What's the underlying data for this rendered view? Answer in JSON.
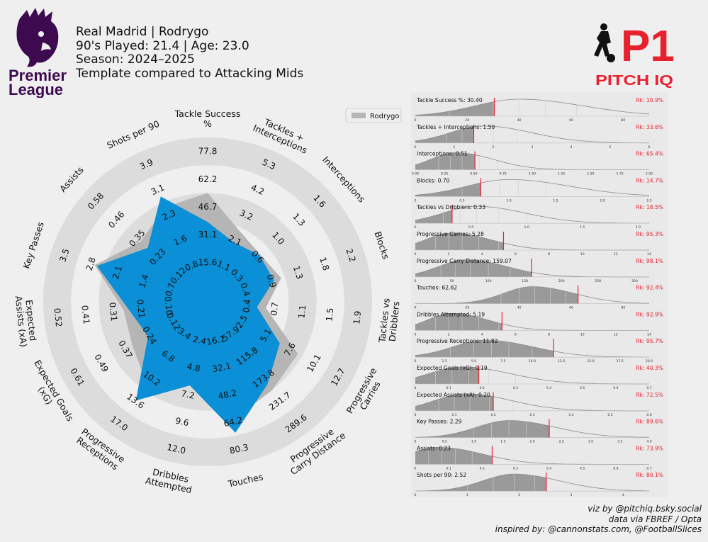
{
  "header": {
    "line1": "Real Madrid | Rodrygo",
    "line2": "90's Played: 21.4 | Age: 23.0",
    "line3": "Season: 2024–2025",
    "line4": "Template compared to Attacking Mids"
  },
  "logos": {
    "league_line1": "Premier",
    "league_line2": "League",
    "brand_p1": "P1",
    "brand_name": "PITCH IQ"
  },
  "colors": {
    "player_fill": "#0b8fd6",
    "comparison_fill": "#b5b5b5",
    "ring_band": "#dcdcdc",
    "percentile_text": "#e8212e",
    "marker": "#e8212e",
    "pl_purple": "#3d0a4f"
  },
  "legend": {
    "label": "Rodrygo"
  },
  "credits": {
    "line1": "viz by @pitchiq.bsky.social",
    "line2": "data via FBREF / Opta",
    "line3": "inspired by: @cannonstats.com, @FootballSlices"
  },
  "chart_data": [
    {
      "type": "radar",
      "name": "Rodrygo",
      "axes": [
        {
          "label": "Tackle Success\n%",
          "ticks": [
            "15.6",
            "31.1",
            "46.7",
            "62.2",
            "77.8"
          ],
          "max": 77.8,
          "player": 30.4,
          "comparison": 46.7
        },
        {
          "label": "Tackles +\nInterceptions",
          "ticks": [
            "1.1",
            "2.1",
            "3.2",
            "4.2",
            "5.3"
          ],
          "max": 5.3,
          "player": 1.5,
          "comparison": 2.0
        },
        {
          "label": "Interceptions",
          "ticks": [
            "0.3",
            "0.6",
            "1.0",
            "1.3",
            "1.6"
          ],
          "max": 1.6,
          "player": 0.51,
          "comparison": 0.52
        },
        {
          "label": "Blocks",
          "ticks": [
            "0.4",
            "0.9",
            "1.3",
            "1.8",
            "2.2"
          ],
          "max": 2.2,
          "player": 0.7,
          "comparison": 0.82
        },
        {
          "label": "Tackles vs\nDribblers",
          "ticks": [
            "0.4",
            "0.7",
            "1.1",
            "1.5",
            "1.9"
          ],
          "max": 1.9,
          "player": 0.33,
          "comparison": 0.45
        },
        {
          "label": "Progressive\nCarries",
          "ticks": [
            "2.5",
            "5.1",
            "7.6",
            "10.1",
            "12.7"
          ],
          "max": 12.7,
          "player": 5.28,
          "comparison": 7.2
        },
        {
          "label": "Progressive\nCarry Distance",
          "ticks": [
            "57.9",
            "115.8",
            "173.8",
            "231.7",
            "289.6"
          ],
          "max": 289.6,
          "player": 159.07,
          "comparison": 175.0
        },
        {
          "label": "Touches",
          "ticks": [
            "16.1",
            "32.1",
            "48.2",
            "64.2",
            "80.3"
          ],
          "max": 80.3,
          "player": 62.62,
          "comparison": 55.0
        },
        {
          "label": "Dribbles\nAttempted",
          "ticks": [
            "2.4",
            "4.8",
            "7.2",
            "9.6",
            "12.0"
          ],
          "max": 12.0,
          "player": 5.19,
          "comparison": 4.8
        },
        {
          "label": "Progressive\nReceptions",
          "ticks": [
            "3.4",
            "6.8",
            "10.2",
            "13.6",
            "17.0"
          ],
          "max": 17.0,
          "player": 11.82,
          "comparison": 9.5
        },
        {
          "label": "Expected Goals\n(xG)",
          "ticks": [
            "0.12",
            "0.24",
            "0.37",
            "0.49",
            "0.61"
          ],
          "max": 0.61,
          "player": 0.19,
          "comparison": 0.27
        },
        {
          "label": "Expected\nAssists (xA)",
          "ticks": [
            "0.10",
            "0.21",
            "0.31",
            "0.41",
            "0.52"
          ],
          "max": 0.52,
          "player": 0.2,
          "comparison": 0.22
        },
        {
          "label": "Key Passes",
          "ticks": [
            "0.7",
            "1.4",
            "2.1",
            "2.8",
            "3.5"
          ],
          "max": 3.5,
          "player": 2.29,
          "comparison": 2.35
        },
        {
          "label": "Assists",
          "ticks": [
            "0.12",
            "0.23",
            "0.35",
            "0.46",
            "0.58"
          ],
          "max": 0.58,
          "player": 0.23,
          "comparison": 0.27
        },
        {
          "label": "Shots per 90",
          "ticks": [
            "0.8",
            "1.6",
            "2.3",
            "3.1",
            "3.9"
          ],
          "max": 3.9,
          "player": 2.52,
          "comparison": 2.2
        }
      ]
    },
    {
      "type": "area",
      "panels": [
        {
          "label": "Tackle Success %: 30.40",
          "rank": "Rk: 10.9%",
          "xmin": 0,
          "xmax": 90,
          "ticks": [
            "0",
            "20",
            "40",
            "60",
            "80"
          ],
          "tickvals": [
            0,
            20,
            40,
            60,
            80
          ],
          "value": 30.4,
          "peak": 40,
          "spread": 17,
          "gridvals": [
            13,
            30,
            40,
            50,
            62
          ]
        },
        {
          "label": "Tackles + Interceptions: 1.50",
          "rank": "Rk: 33.6%",
          "xmin": 0,
          "xmax": 6,
          "ticks": [
            "0",
            "1",
            "2",
            "3",
            "4",
            "5",
            "6"
          ],
          "tickvals": [
            0,
            1,
            2,
            3,
            4,
            5,
            6
          ],
          "value": 1.5,
          "peak": 1.75,
          "spread": 0.85,
          "gridvals": [
            0.8,
            1.2,
            1.5,
            2.0,
            2.6
          ]
        },
        {
          "label": "Interceptions: 0.51",
          "rank": "Rk: 65.4%",
          "xmin": 0,
          "xmax": 2,
          "ticks": [
            "0.00",
            "0.25",
            "0.50",
            "0.75",
            "1.00",
            "1.25",
            "1.50",
            "1.75",
            "2.00"
          ],
          "tickvals": [
            0,
            0.25,
            0.5,
            0.75,
            1,
            1.25,
            1.5,
            1.75,
            2
          ],
          "value": 0.51,
          "peak": 0.35,
          "spread": 0.22,
          "gridvals": [
            0.2,
            0.3,
            0.4,
            0.55,
            0.7
          ]
        },
        {
          "label": "Blocks: 0.70",
          "rank": "Rk: 14.7%",
          "xmin": 0,
          "xmax": 2.5,
          "ticks": [
            "0",
            "0.5",
            "1.0",
            "1.5",
            "2.0",
            "2.5"
          ],
          "tickvals": [
            0,
            0.5,
            1,
            1.5,
            2,
            2.5
          ],
          "value": 0.7,
          "peak": 1.0,
          "spread": 0.45,
          "gridvals": [
            0.5,
            0.7,
            0.9,
            1.1,
            1.4
          ]
        },
        {
          "label": "Tackles vs Dribblers: 0.33",
          "rank": "Rk: 18.5%",
          "xmin": 0,
          "xmax": 2.1,
          "ticks": [
            "0",
            "0.5",
            "1.0",
            "1.5",
            "2.0"
          ],
          "tickvals": [
            0,
            0.5,
            1,
            1.5,
            2
          ],
          "value": 0.33,
          "peak": 0.55,
          "spread": 0.3,
          "gridvals": [
            0.25,
            0.4,
            0.55,
            0.75,
            1.0
          ]
        },
        {
          "label": "Progressive Carries: 5.28",
          "rank": "Rk: 95.3%",
          "xmin": 0,
          "xmax": 14,
          "ticks": [
            "0",
            "2",
            "4",
            "6",
            "8",
            "10",
            "12",
            "14"
          ],
          "tickvals": [
            0,
            2,
            4,
            6,
            8,
            10,
            12,
            14
          ],
          "value": 5.28,
          "peak": 2.2,
          "spread": 1.6,
          "gridvals": [
            1.2,
            2.0,
            2.8,
            3.8,
            5.0
          ]
        },
        {
          "label": "Progressive Carry Distance: 159.07",
          "rank": "Rk: 98.1%",
          "xmin": 0,
          "xmax": 320,
          "ticks": [
            "0",
            "50",
            "100",
            "150",
            "200",
            "250",
            "300"
          ],
          "tickvals": [
            0,
            50,
            100,
            150,
            200,
            250,
            300
          ],
          "value": 159.07,
          "peak": 70,
          "spread": 38,
          "gridvals": [
            35,
            55,
            75,
            100,
            130
          ]
        },
        {
          "label": "Touches: 62.62",
          "rank": "Rk: 92.4%",
          "xmin": 0,
          "xmax": 90,
          "ticks": [
            "0",
            "20",
            "40",
            "60",
            "80"
          ],
          "tickvals": [
            0,
            20,
            40,
            60,
            80
          ],
          "value": 62.62,
          "peak": 45,
          "spread": 11,
          "gridvals": [
            33,
            40,
            46,
            52,
            58
          ]
        },
        {
          "label": "Dribbles Attempted: 5.19",
          "rank": "Rk: 92.9%",
          "xmin": 0,
          "xmax": 14,
          "ticks": [
            "0",
            "2",
            "4",
            "6",
            "8",
            "10",
            "12",
            "14"
          ],
          "tickvals": [
            0,
            2,
            4,
            6,
            8,
            10,
            12,
            14
          ],
          "value": 5.19,
          "peak": 2.2,
          "spread": 1.5,
          "gridvals": [
            1.2,
            2.0,
            2.8,
            3.8,
            5.0
          ]
        },
        {
          "label": "Progressive Receptions: 11.82",
          "rank": "Rk: 95.7%",
          "xmin": 0,
          "xmax": 20,
          "ticks": [
            "0",
            "2.5",
            "5.0",
            "7.5",
            "10.0",
            "12.5",
            "15.0",
            "17.5",
            "20.0"
          ],
          "tickvals": [
            0,
            2.5,
            5,
            7.5,
            10,
            12.5,
            15,
            17.5,
            20
          ],
          "value": 11.82,
          "peak": 6,
          "spread": 2.8,
          "gridvals": [
            3,
            5,
            6.5,
            8,
            10
          ]
        },
        {
          "label": "Expected Goals (xG): 0.19",
          "rank": "Rk: 40.3%",
          "xmin": 0,
          "xmax": 0.7,
          "ticks": [
            "0",
            "0.1",
            "0.2",
            "0.3",
            "0.4",
            "0.5",
            "0.6",
            "0.7"
          ],
          "tickvals": [
            0,
            0.1,
            0.2,
            0.3,
            0.4,
            0.5,
            0.6,
            0.7
          ],
          "value": 0.19,
          "peak": 0.14,
          "spread": 0.1,
          "gridvals": [
            0.06,
            0.11,
            0.16,
            0.22,
            0.3
          ]
        },
        {
          "label": "Expected Assists (xA): 0.20",
          "rank": "Rk: 72.5%",
          "xmin": 0,
          "xmax": 0.6,
          "ticks": [
            "0",
            "0.1",
            "0.2",
            "0.3",
            "0.4",
            "0.5",
            "0.6"
          ],
          "tickvals": [
            0,
            0.1,
            0.2,
            0.3,
            0.4,
            0.5,
            0.6
          ],
          "value": 0.2,
          "peak": 0.13,
          "spread": 0.08,
          "gridvals": [
            0.06,
            0.1,
            0.14,
            0.19,
            0.25
          ]
        },
        {
          "label": "Key Passes: 2.29",
          "rank": "Rk: 89.6%",
          "xmin": 0,
          "xmax": 4,
          "ticks": [
            "0",
            "0.5",
            "1.0",
            "1.5",
            "2.0",
            "2.5",
            "3.0",
            "3.5",
            "4.0"
          ],
          "tickvals": [
            0,
            0.5,
            1,
            1.5,
            2,
            2.5,
            3,
            3.5,
            4
          ],
          "value": 2.29,
          "peak": 1.6,
          "spread": 0.55,
          "gridvals": [
            1.0,
            1.3,
            1.6,
            1.9,
            2.3
          ]
        },
        {
          "label": "Assists: 0.23",
          "rank": "Rk: 73.9%",
          "xmin": 0,
          "xmax": 0.7,
          "ticks": [
            "0",
            "0.1",
            "0.2",
            "0.3",
            "0.4",
            "0.5",
            "0.6",
            "0.7"
          ],
          "tickvals": [
            0,
            0.1,
            0.2,
            0.3,
            0.4,
            0.5,
            0.6,
            0.7
          ],
          "value": 0.23,
          "peak": 0.07,
          "spread": 0.09,
          "gridvals": [
            0.04,
            0.08,
            0.12,
            0.17,
            0.23
          ]
        },
        {
          "label": "Shots per 90: 2.52",
          "rank": "Rk: 80.1%",
          "xmin": 0,
          "xmax": 4.5,
          "ticks": [
            "0",
            "1",
            "2",
            "3",
            "4"
          ],
          "tickvals": [
            0,
            1,
            2,
            3,
            4
          ],
          "value": 2.52,
          "peak": 1.9,
          "spread": 0.6,
          "gridvals": [
            1.0,
            1.5,
            1.9,
            2.3,
            2.9
          ]
        }
      ]
    }
  ]
}
